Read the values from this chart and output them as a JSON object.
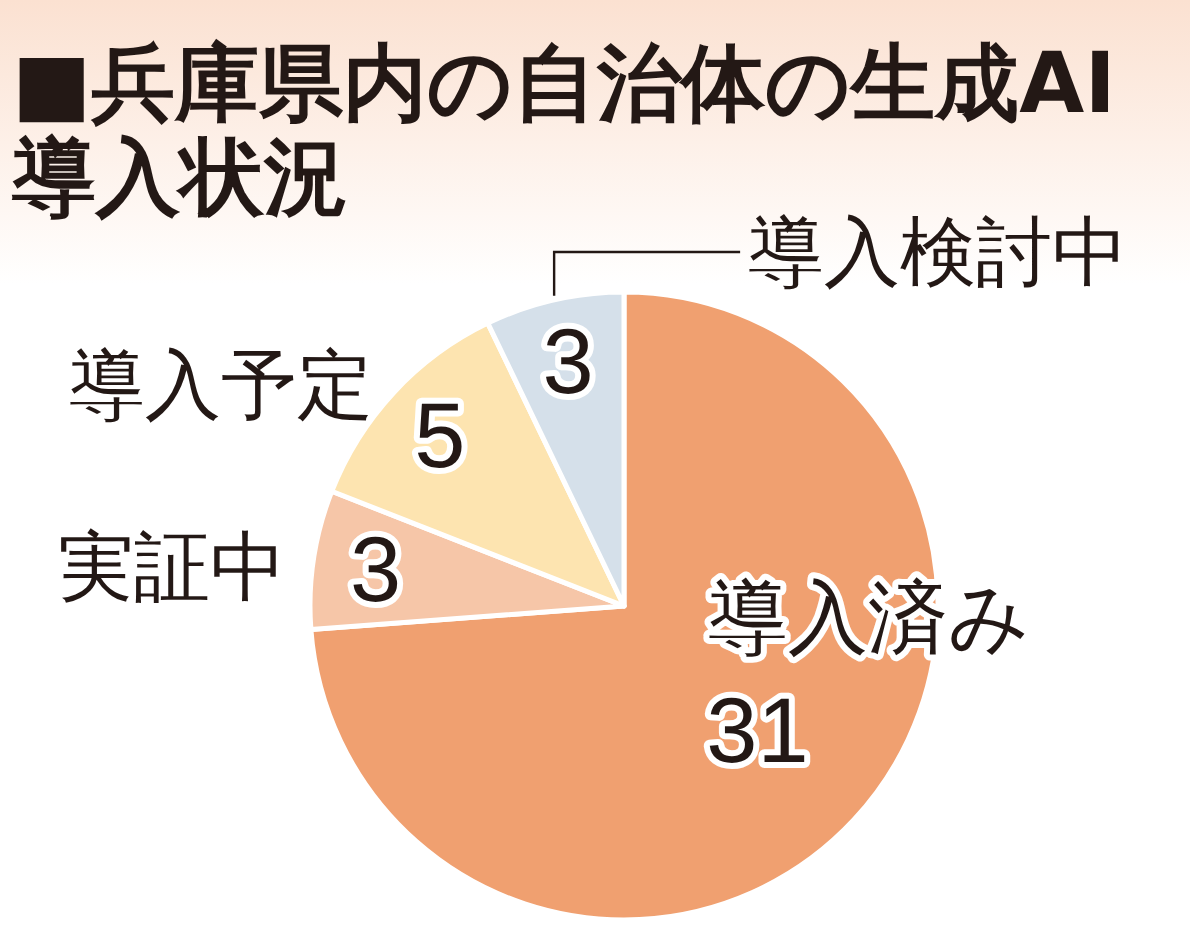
{
  "chart_data": {
    "type": "pie",
    "title": "■兵庫県内の自治体の生成AI導入状況",
    "categories": [
      "導入済み",
      "実証中",
      "導入予定",
      "導入検討中"
    ],
    "values": [
      31,
      3,
      5,
      3
    ],
    "colors": [
      "#f0a070",
      "#f6c6a8",
      "#fde4b0",
      "#d5e0ea"
    ],
    "data_labels": true
  }
}
